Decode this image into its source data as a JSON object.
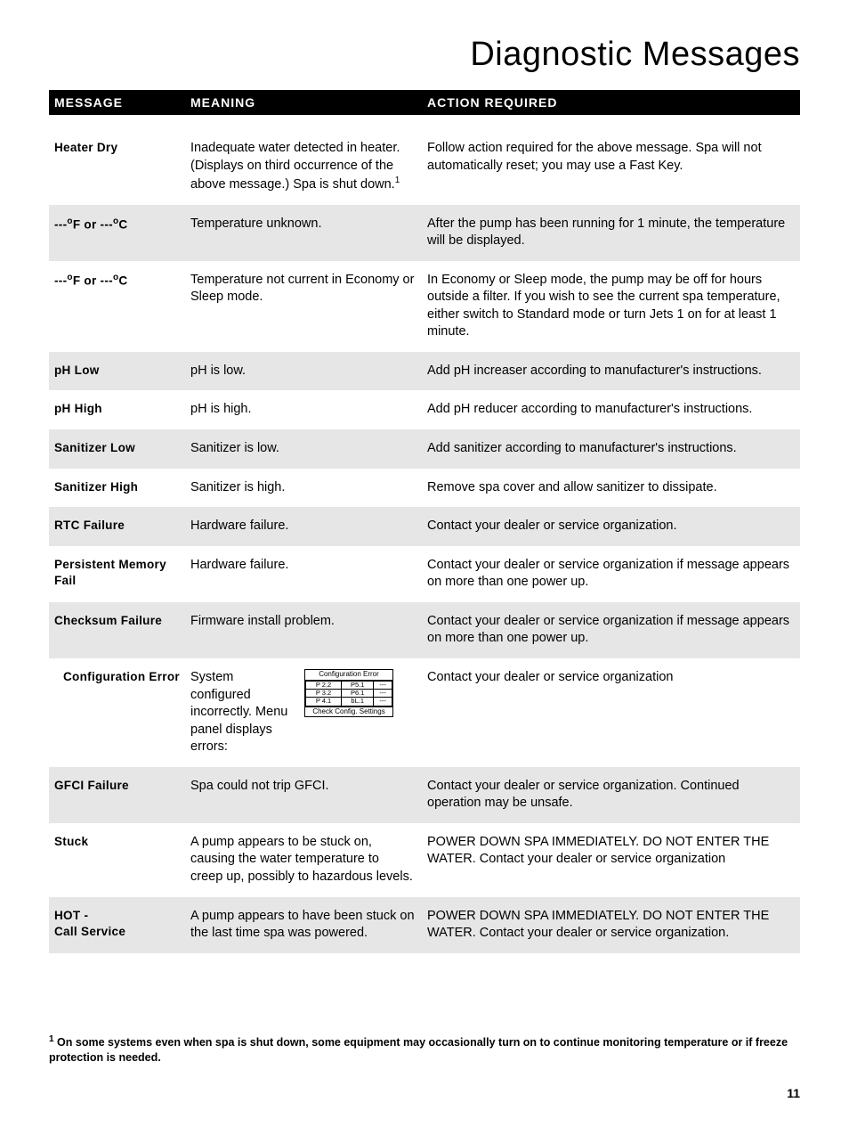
{
  "title": "Diagnostic Messages",
  "headers": {
    "message": "MESSAGE",
    "meaning": "MEANING",
    "action": "ACTION REQUIRED"
  },
  "rows": [
    {
      "shaded": false,
      "first": true,
      "indent": false,
      "message": "Heater Dry",
      "meaning_html": "Inadequate water detected in heater. (Displays on third occurrence of the above message.) Spa is shut down.<span class=\"sup\">1</span>",
      "action": "Follow action required for the above message. Spa will not automatically reset; you may use a Fast Key."
    },
    {
      "shaded": true,
      "indent": false,
      "message_html": "---<span class=\"sup\">o</span>F or ---<span class=\"sup\">o</span>C",
      "meaning": "Temperature unknown.",
      "action": "After the pump has been running for 1 minute, the temperature will be displayed."
    },
    {
      "shaded": false,
      "indent": false,
      "message_html": "---<span class=\"sup\">o</span>F or ---<span class=\"sup\">o</span>C",
      "meaning": "Temperature not current in Economy or Sleep mode.",
      "action": "In Economy or Sleep mode, the pump may be off for hours outside a filter. If you wish to see the current spa temperature, either switch to Standard mode or turn Jets 1 on for at least 1 minute."
    },
    {
      "shaded": true,
      "indent": false,
      "message": "pH Low",
      "meaning": "pH is low.",
      "action": "Add pH increaser according to manufacturer's instructions."
    },
    {
      "shaded": false,
      "indent": false,
      "message": "pH High",
      "meaning": "pH is high.",
      "action": "Add pH reducer according to manufacturer's instructions."
    },
    {
      "shaded": true,
      "indent": false,
      "message": "Sanitizer Low",
      "meaning": "Sanitizer is low.",
      "action": "Add sanitizer according to manufacturer's instructions."
    },
    {
      "shaded": false,
      "indent": false,
      "message": "Sanitizer High",
      "meaning": "Sanitizer is high.",
      "action": "Remove spa cover and allow sanitizer to dissipate."
    },
    {
      "shaded": true,
      "indent": false,
      "message": "RTC Failure",
      "meaning": "Hardware failure.",
      "action": "Contact your dealer or service organization."
    },
    {
      "shaded": false,
      "indent": false,
      "message": "Persistent Memory Fail",
      "meaning": "Hardware failure.",
      "action": "Contact your dealer or service organization if message appears on more than one power up."
    },
    {
      "shaded": true,
      "indent": false,
      "message": "Checksum Failure",
      "meaning": "Firmware install problem.",
      "action": "Contact your dealer or service organization if message appears on more than one power up."
    },
    {
      "shaded": false,
      "indent": true,
      "config": true,
      "message": "Configuration Error",
      "meaning": "System configured incorrectly. Menu panel displays errors:",
      "action": "Contact your dealer or service organization"
    },
    {
      "shaded": true,
      "indent": false,
      "message": "GFCI Failure",
      "meaning": "Spa could not trip GFCI.",
      "action": "Contact your dealer or service organization. Continued operation may be unsafe."
    },
    {
      "shaded": false,
      "indent": false,
      "message": "Stuck",
      "meaning": "A pump appears to be stuck on, causing the water temperature to creep up, possibly to hazardous levels.",
      "action": "POWER DOWN SPA IMMEDIATELY. DO NOT ENTER THE WATER. Contact your dealer or service organization"
    },
    {
      "shaded": true,
      "indent": false,
      "message_html": "HOT -<br>Call Service",
      "meaning": "A pump appears to have been stuck on the last time spa was powered.",
      "action": "POWER DOWN SPA IMMEDIATELY. DO NOT ENTER THE WATER. Contact your dealer or service organization."
    }
  ],
  "config_panel": {
    "title": "Configuration Error",
    "cells": [
      [
        "P 2.2",
        "P5.1",
        "---"
      ],
      [
        "P 3.2",
        "P6.1",
        "---"
      ],
      [
        "P 4.1",
        "bL.1",
        "---"
      ]
    ],
    "footer": "Check Config. Settings"
  },
  "footnote_html": "<span class=\"sup\">1</span> On some systems even when spa is shut down, some equipment may occasionally turn on to continue monitoring temperature or if freeze protection is needed.",
  "page_number": "11"
}
